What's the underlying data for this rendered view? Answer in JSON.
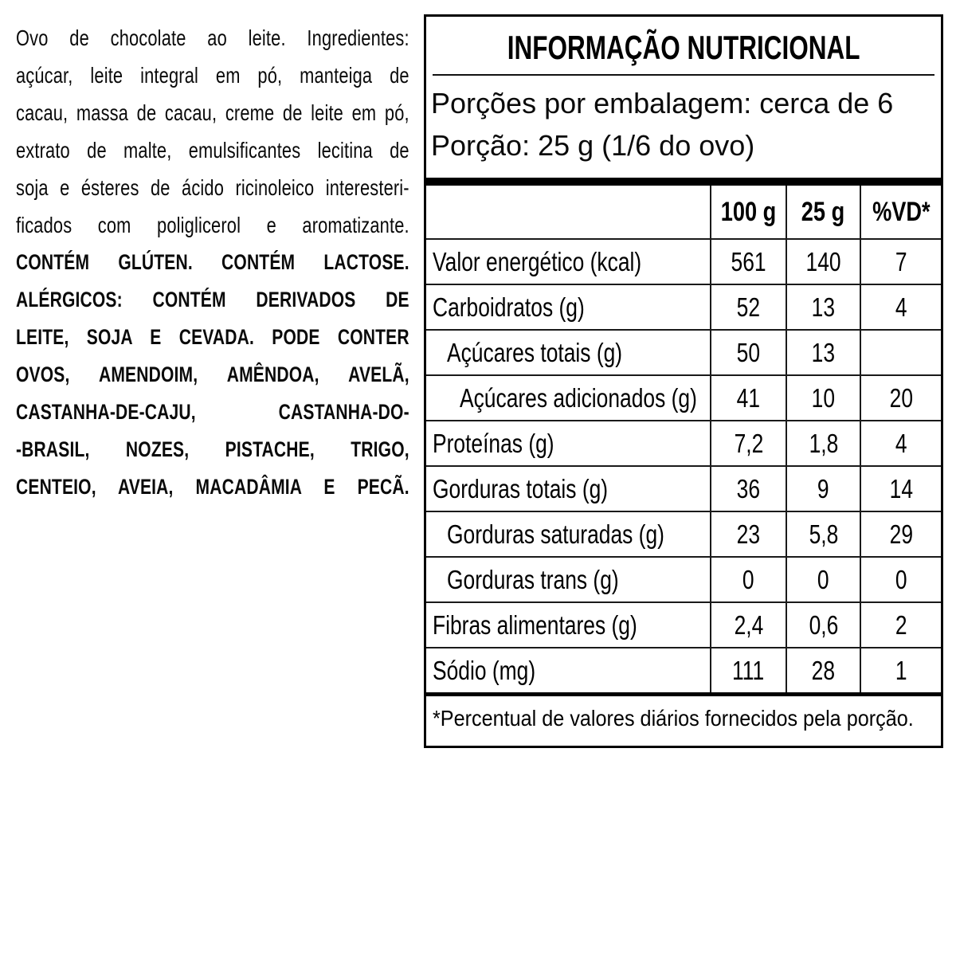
{
  "ingredients": {
    "regular_lines": [
      "Ovo de chocolate ao leite. Ingredientes:",
      "açúcar, leite integral em pó, manteiga de",
      "cacau, massa de cacau, creme de leite em pó,",
      "extrato de malte, emulsificantes lecitina de",
      "soja e ésteres de ácido ricinoleico interesteri-",
      "ficados com poliglicerol e aromatizante."
    ],
    "bold_lines": [
      "CONTÉM GLÚTEN. CONTÉM LACTOSE.",
      "ALÉRGICOS: CONTÉM DERIVADOS DE",
      "LEITE, SOJA E CEVADA. PODE CONTER",
      "OVOS, AMENDOIM, AMÊNDOA, AVELÃ,",
      "CASTANHA-DE-CAJU, CASTANHA-DO-",
      "-BRASIL, NOZES, PISTACHE, TRIGO,",
      "CENTEIO, AVEIA, MACADÂMIA E PECÃ."
    ]
  },
  "nutrition": {
    "title": "INFORMAÇÃO NUTRICIONAL",
    "servings_per_package": "Porções por embalagem: cerca de 6",
    "serving_size": "Porção: 25 g (1/6 do ovo)",
    "columns": {
      "per_100g": "100 g",
      "per_25g": "25 g",
      "daily_value": "%VD*"
    },
    "rows": [
      {
        "name": "Valor energético (kcal)",
        "indent": 0,
        "per_100g": "561",
        "per_25g": "140",
        "daily_value": "7"
      },
      {
        "name": "Carboidratos (g)",
        "indent": 0,
        "per_100g": "52",
        "per_25g": "13",
        "daily_value": "4"
      },
      {
        "name": "Açúcares totais (g)",
        "indent": 1,
        "per_100g": "50",
        "per_25g": "13",
        "daily_value": ""
      },
      {
        "name": "Açúcares adicionados (g)",
        "indent": 2,
        "per_100g": "41",
        "per_25g": "10",
        "daily_value": "20"
      },
      {
        "name": "Proteínas (g)",
        "indent": 0,
        "per_100g": "7,2",
        "per_25g": "1,8",
        "daily_value": "4"
      },
      {
        "name": "Gorduras totais (g)",
        "indent": 0,
        "per_100g": "36",
        "per_25g": "9",
        "daily_value": "14"
      },
      {
        "name": "Gorduras saturadas (g)",
        "indent": 1,
        "per_100g": "23",
        "per_25g": "5,8",
        "daily_value": "29"
      },
      {
        "name": "Gorduras trans (g)",
        "indent": 1,
        "per_100g": "0",
        "per_25g": "0",
        "daily_value": "0"
      },
      {
        "name": "Fibras alimentares (g)",
        "indent": 0,
        "per_100g": "2,4",
        "per_25g": "0,6",
        "daily_value": "2"
      },
      {
        "name": "Sódio (mg)",
        "indent": 0,
        "per_100g": "111",
        "per_25g": "28",
        "daily_value": "1"
      }
    ],
    "footnote": "*Percentual de valores diários fornecidos pela porção.",
    "text_color": "#000000",
    "border_color": "#000000",
    "background_color": "#ffffff"
  }
}
